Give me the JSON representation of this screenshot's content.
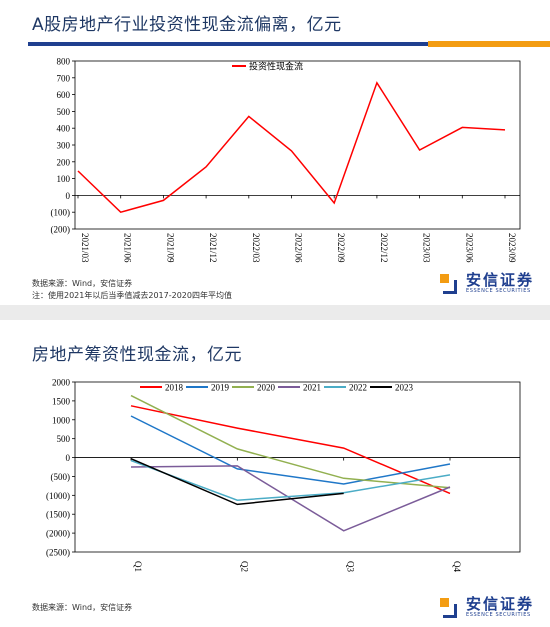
{
  "panel1": {
    "title": "A股房地产行业投资性现金流偏离，亿元",
    "source": "数据来源：Wind，安信证券",
    "note": "注：使用2021年以后当季值减去2017-2020四年平均值",
    "logo": {
      "cn": "安信证券",
      "en": "ESSENCE SECURITIES"
    }
  },
  "panel2": {
    "title": "房地产筹资性现金流，亿元",
    "source": "数据来源：Wind，安信证券",
    "logo": {
      "cn": "安信证券",
      "en": "ESSENCE SECURITIES"
    }
  },
  "chart_data": [
    {
      "type": "line",
      "x": [
        "2021/03",
        "2021/06",
        "2021/09",
        "2021/12",
        "2022/03",
        "2022/06",
        "2022/09",
        "2022/12",
        "2023/03",
        "2023/06",
        "2023/09"
      ],
      "series": [
        {
          "name": "投资性现金流",
          "color": "#ff0000",
          "values": [
            145,
            -100,
            -30,
            170,
            470,
            265,
            -45,
            670,
            270,
            405,
            390
          ]
        }
      ],
      "ylim": [
        -200,
        800
      ],
      "yticks": [
        -200,
        -100,
        0,
        100,
        200,
        300,
        400,
        500,
        600,
        700,
        800
      ],
      "ytick_labels": [
        "(200)",
        "(100)",
        "0",
        "100",
        "200",
        "300",
        "400",
        "500",
        "600",
        "700",
        "800"
      ],
      "legend": "top-center",
      "grid": false
    },
    {
      "type": "line",
      "categories": [
        "Q1",
        "Q2",
        "Q3",
        "Q4"
      ],
      "series": [
        {
          "name": "2018",
          "color": "#ff0000",
          "values": [
            1370,
            780,
            250,
            -950
          ]
        },
        {
          "name": "2019",
          "color": "#1f77c8",
          "values": [
            1100,
            -300,
            -700,
            -170
          ]
        },
        {
          "name": "2020",
          "color": "#92b050",
          "values": [
            1640,
            230,
            -550,
            -800
          ]
        },
        {
          "name": "2021",
          "color": "#7b5c99",
          "values": [
            -250,
            -220,
            -1940,
            -780
          ]
        },
        {
          "name": "2022",
          "color": "#4bacc6",
          "values": [
            -80,
            -1130,
            -930,
            -460
          ]
        },
        {
          "name": "2023",
          "color": "#000000",
          "values": [
            -30,
            -1240,
            -950,
            null
          ]
        }
      ],
      "ylim": [
        -2500,
        2000
      ],
      "yticks": [
        -2500,
        -2000,
        -1500,
        -1000,
        -500,
        0,
        500,
        1000,
        1500,
        2000
      ],
      "ytick_labels": [
        "(2500)",
        "(2000)",
        "(1500)",
        "(1000)",
        "(500)",
        "0",
        "500",
        "1000",
        "1500",
        "2000"
      ],
      "legend": "top",
      "grid": false
    }
  ]
}
